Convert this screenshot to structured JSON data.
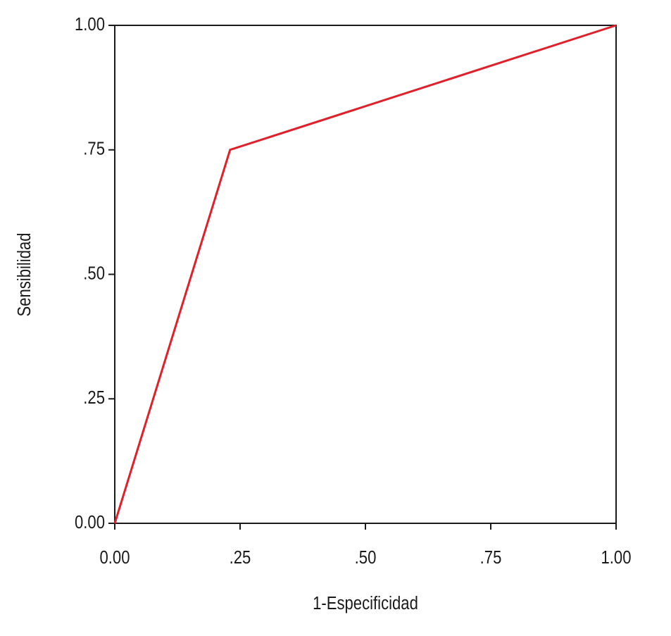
{
  "chart_data": {
    "type": "line",
    "xlabel": "1-Especificidad",
    "ylabel": "Sensibilidad",
    "x": [
      0,
      0.23,
      1
    ],
    "series": [
      {
        "color": "#e0202a",
        "values": [
          0,
          0.75,
          1
        ]
      }
    ],
    "xlim": [
      0,
      1
    ],
    "ylim": [
      0,
      1
    ],
    "xticks": [
      {
        "value": 0,
        "label": "0.00"
      },
      {
        "value": 0.25,
        "label": ".25"
      },
      {
        "value": 0.5,
        "label": ".50"
      },
      {
        "value": 0.75,
        "label": ".75"
      },
      {
        "value": 1,
        "label": "1.00"
      }
    ],
    "yticks": [
      {
        "value": 0,
        "label": "0.00"
      },
      {
        "value": 0.25,
        "label": ".25"
      },
      {
        "value": 0.5,
        "label": ".50"
      },
      {
        "value": 0.75,
        "label": ".75"
      },
      {
        "value": 1,
        "label": "1.00"
      }
    ],
    "grid": false
  }
}
